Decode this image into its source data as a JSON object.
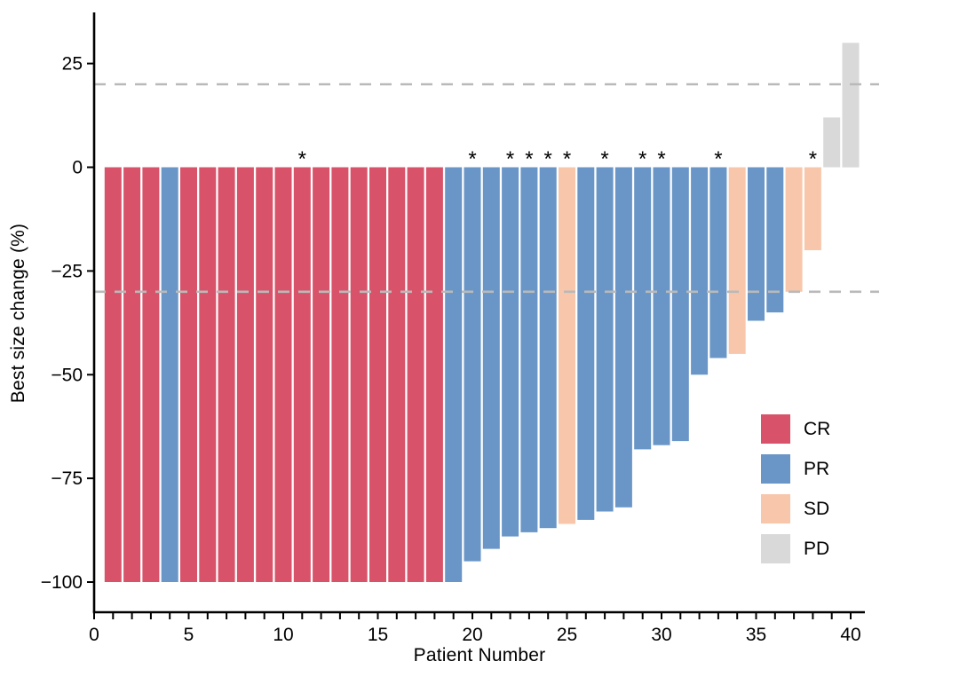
{
  "chart_data": {
    "type": "bar",
    "variant": "waterfall-tumor-response",
    "title": "",
    "xlabel": "Patient Number",
    "ylabel": "Best size change (%)",
    "x_tick_labels": [
      0,
      5,
      10,
      15,
      20,
      25,
      30,
      35,
      40
    ],
    "x_minor_tick_step": 1,
    "y_tick_labels": [
      25,
      0,
      -25,
      -50,
      -75,
      -100
    ],
    "xlim": [
      0,
      41.5
    ],
    "ylim": [
      -107,
      37
    ],
    "grid": false,
    "reference_lines": [
      {
        "y": 20,
        "style": "dashed",
        "color": "#b9b9b9"
      },
      {
        "y": -30,
        "style": "dashed",
        "color": "#b9b9b9"
      }
    ],
    "annotation_symbol": "*",
    "legend": {
      "position": "inside-bottom-right",
      "items": [
        {
          "label": "CR",
          "color": "#d8536a"
        },
        {
          "label": "PR",
          "color": "#6996c6"
        },
        {
          "label": "SD",
          "color": "#f8c7ab"
        },
        {
          "label": "PD",
          "color": "#d9d9d9"
        }
      ]
    },
    "points": [
      {
        "patient": 1,
        "value": -100,
        "response": "CR",
        "star": false
      },
      {
        "patient": 2,
        "value": -100,
        "response": "CR",
        "star": false
      },
      {
        "patient": 3,
        "value": -100,
        "response": "CR",
        "star": false
      },
      {
        "patient": 4,
        "value": -100,
        "response": "PR",
        "star": false
      },
      {
        "patient": 5,
        "value": -100,
        "response": "CR",
        "star": false
      },
      {
        "patient": 6,
        "value": -100,
        "response": "CR",
        "star": false
      },
      {
        "patient": 7,
        "value": -100,
        "response": "CR",
        "star": false
      },
      {
        "patient": 8,
        "value": -100,
        "response": "CR",
        "star": false
      },
      {
        "patient": 9,
        "value": -100,
        "response": "CR",
        "star": false
      },
      {
        "patient": 10,
        "value": -100,
        "response": "CR",
        "star": false
      },
      {
        "patient": 11,
        "value": -100,
        "response": "CR",
        "star": true
      },
      {
        "patient": 12,
        "value": -100,
        "response": "CR",
        "star": false
      },
      {
        "patient": 13,
        "value": -100,
        "response": "CR",
        "star": false
      },
      {
        "patient": 14,
        "value": -100,
        "response": "CR",
        "star": false
      },
      {
        "patient": 15,
        "value": -100,
        "response": "CR",
        "star": false
      },
      {
        "patient": 16,
        "value": -100,
        "response": "CR",
        "star": false
      },
      {
        "patient": 17,
        "value": -100,
        "response": "CR",
        "star": false
      },
      {
        "patient": 18,
        "value": -100,
        "response": "CR",
        "star": false
      },
      {
        "patient": 19,
        "value": -100,
        "response": "PR",
        "star": false
      },
      {
        "patient": 20,
        "value": -95,
        "response": "PR",
        "star": true
      },
      {
        "patient": 21,
        "value": -92,
        "response": "PR",
        "star": false
      },
      {
        "patient": 22,
        "value": -89,
        "response": "PR",
        "star": true
      },
      {
        "patient": 23,
        "value": -88,
        "response": "PR",
        "star": true
      },
      {
        "patient": 24,
        "value": -87,
        "response": "PR",
        "star": true
      },
      {
        "patient": 25,
        "value": -86,
        "response": "SD",
        "star": true
      },
      {
        "patient": 26,
        "value": -85,
        "response": "PR",
        "star": false
      },
      {
        "patient": 27,
        "value": -83,
        "response": "PR",
        "star": true
      },
      {
        "patient": 28,
        "value": -82,
        "response": "PR",
        "star": false
      },
      {
        "patient": 29,
        "value": -68,
        "response": "PR",
        "star": true
      },
      {
        "patient": 30,
        "value": -67,
        "response": "PR",
        "star": true
      },
      {
        "patient": 31,
        "value": -66,
        "response": "PR",
        "star": false
      },
      {
        "patient": 32,
        "value": -50,
        "response": "PR",
        "star": false
      },
      {
        "patient": 33,
        "value": -46,
        "response": "PR",
        "star": true
      },
      {
        "patient": 34,
        "value": -45,
        "response": "SD",
        "star": false
      },
      {
        "patient": 35,
        "value": -37,
        "response": "PR",
        "star": false
      },
      {
        "patient": 36,
        "value": -35,
        "response": "PR",
        "star": false
      },
      {
        "patient": 37,
        "value": -30,
        "response": "SD",
        "star": false
      },
      {
        "patient": 38,
        "value": -20,
        "response": "SD",
        "star": true
      },
      {
        "patient": 39,
        "value": 12,
        "response": "PD",
        "star": false
      },
      {
        "patient": 40,
        "value": 30,
        "response": "PD",
        "star": false
      }
    ]
  }
}
